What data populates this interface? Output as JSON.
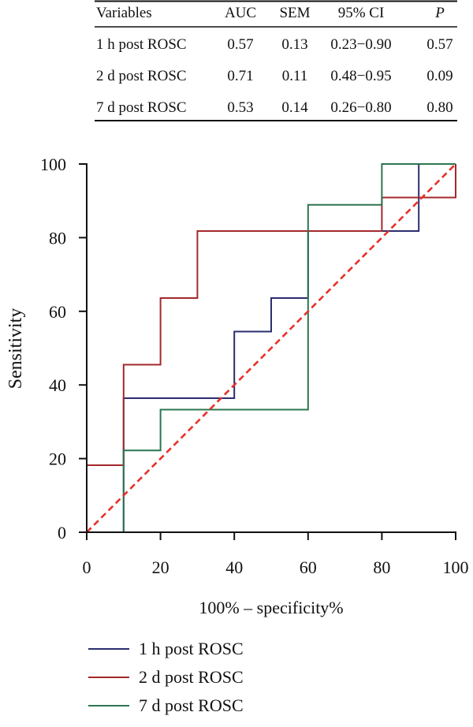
{
  "stats_table": {
    "headers": [
      "Variables",
      "AUC",
      "SEM",
      "95% CI",
      "P"
    ],
    "rows": [
      [
        "1 h post ROSC",
        "0.57",
        "0.13",
        "0.23−0.90",
        "0.57"
      ],
      [
        "2 d post ROSC",
        "0.71",
        "0.11",
        "0.48−0.95",
        "0.09"
      ],
      [
        "7 d post ROSC",
        "0.53",
        "0.14",
        "0.26−0.80",
        "0.80"
      ]
    ]
  },
  "chart_data": {
    "type": "line",
    "title": "",
    "xlabel": "100% – specificity%",
    "ylabel": "Sensitivity",
    "xlim": [
      0,
      100
    ],
    "ylim": [
      0,
      100
    ],
    "xticks": [
      0,
      20,
      40,
      60,
      80,
      100
    ],
    "yticks": [
      0,
      20,
      40,
      60,
      80,
      100
    ],
    "grid": false,
    "legend_position": "bottom-left",
    "series": [
      {
        "name": "1 h post ROSC",
        "color": "#2b2d6e",
        "points": [
          [
            10,
            0
          ],
          [
            10,
            36.4
          ],
          [
            40,
            36.4
          ],
          [
            40,
            54.5
          ],
          [
            50,
            54.5
          ],
          [
            50,
            63.6
          ],
          [
            60,
            63.6
          ],
          [
            60,
            81.8
          ],
          [
            90,
            81.8
          ],
          [
            90,
            100
          ],
          [
            100,
            100
          ]
        ]
      },
      {
        "name": "2 d post ROSC",
        "color": "#a3282c",
        "points": [
          [
            0,
            0
          ],
          [
            0,
            18.2
          ],
          [
            10,
            18.2
          ],
          [
            10,
            45.5
          ],
          [
            20,
            45.5
          ],
          [
            20,
            63.6
          ],
          [
            30,
            63.6
          ],
          [
            30,
            81.8
          ],
          [
            80,
            81.8
          ],
          [
            80,
            90.9
          ],
          [
            100,
            90.9
          ],
          [
            100,
            100
          ]
        ]
      },
      {
        "name": "7 d post ROSC",
        "color": "#2c7550",
        "points": [
          [
            0,
            0
          ],
          [
            10,
            0
          ],
          [
            10,
            22.2
          ],
          [
            20,
            22.2
          ],
          [
            20,
            33.3
          ],
          [
            60,
            33.3
          ],
          [
            60,
            88.9
          ],
          [
            80,
            88.9
          ],
          [
            80,
            100
          ],
          [
            100,
            100
          ]
        ]
      }
    ],
    "reference_line": {
      "color": "#e8302a",
      "points": [
        [
          0,
          0
        ],
        [
          100,
          100
        ]
      ]
    }
  }
}
